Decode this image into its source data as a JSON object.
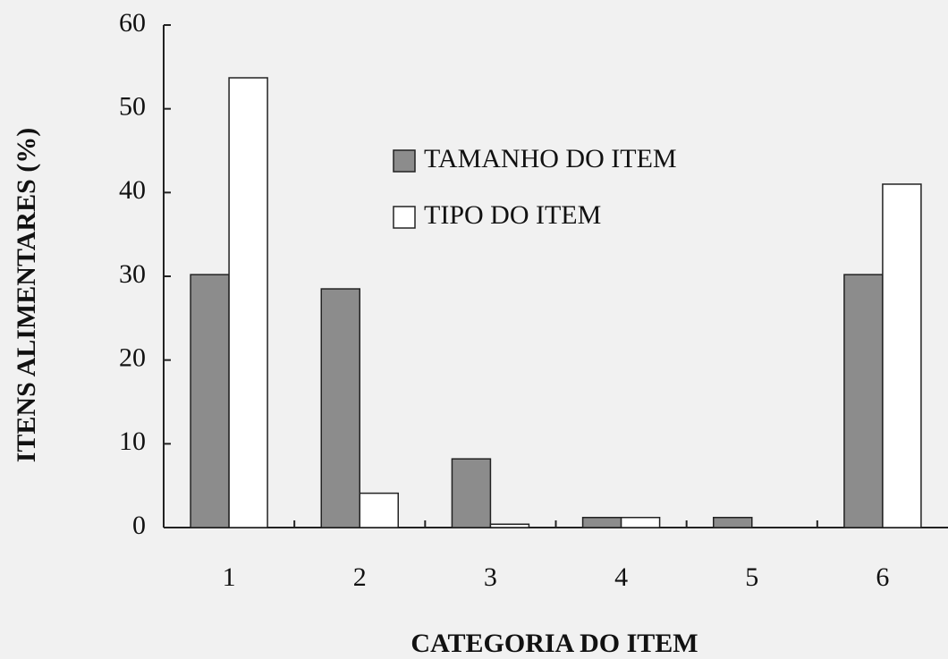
{
  "chart_data": {
    "type": "bar",
    "xlabel": "CATEGORIA DO ITEM",
    "ylabel": "ITENS ALIMENTARES (%)",
    "categories": [
      "1",
      "2",
      "3",
      "4",
      "5",
      "6"
    ],
    "series": [
      {
        "name": "TAMANHO DO ITEM",
        "color": "#8c8c8c",
        "values": [
          30.2,
          28.5,
          8.2,
          1.2,
          1.2,
          30.2
        ]
      },
      {
        "name": "TIPO DO ITEM",
        "color": "#ffffff",
        "values": [
          53.7,
          4.1,
          0.4,
          1.2,
          0,
          41.0
        ]
      }
    ],
    "ylim": [
      0,
      60
    ],
    "yticks": [
      0,
      10,
      20,
      30,
      40,
      50,
      60
    ],
    "legend": "upper center"
  }
}
